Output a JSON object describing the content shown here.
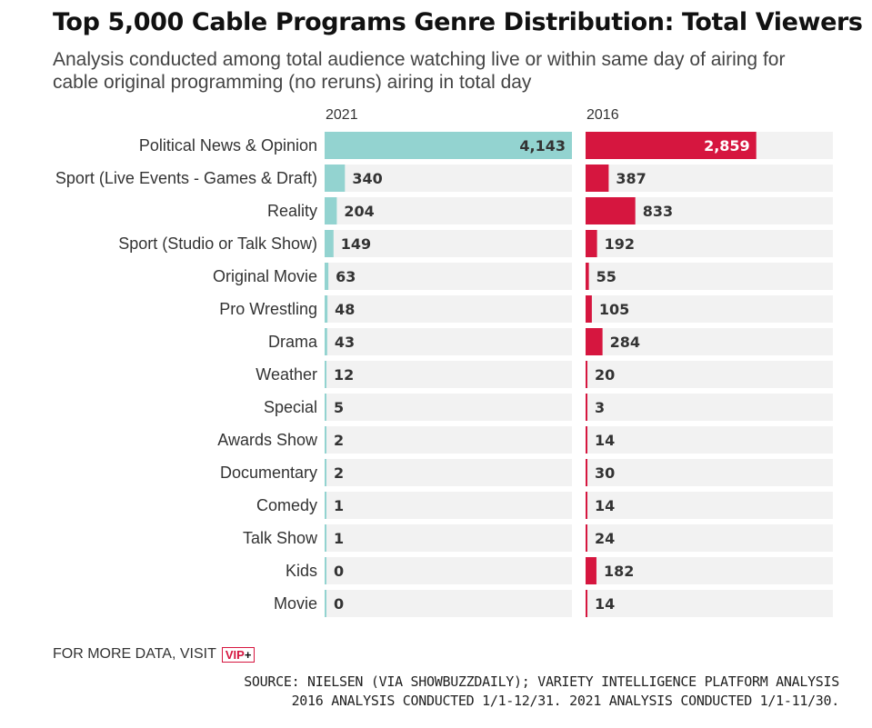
{
  "title": "Top 5,000 Cable Programs Genre Distribution: Total Viewers",
  "subtitle": "Analysis conducted among total audience watching live or within same day of airing for cable original programming (no reruns) airing in total day",
  "footer": {
    "more_data": "FOR MORE DATA, VISIT",
    "vip_label": "VIP",
    "vip_plus": "+",
    "source_line1": "SOURCE: NIELSEN (VIA SHOWBUZZDAILY); VARIETY INTELLIGENCE PLATFORM ANALYSIS",
    "source_line2": "2016 ANALYSIS CONDUCTED 1/1-12/31. 2021 ANALYSIS CONDUCTED 1/1-11/30."
  },
  "colors": {
    "series_2021": "#93d3d0",
    "series_2016": "#d6163f",
    "track": "#f2f2f2"
  },
  "chart_data": {
    "type": "bar",
    "orientation": "horizontal",
    "categories": [
      "Political News & Opinion",
      "Sport (Live Events - Games & Draft)",
      "Reality",
      "Sport (Studio or Talk Show)",
      "Original Movie",
      "Pro Wrestling",
      "Drama",
      "Weather",
      "Special",
      "Awards Show",
      "Documentary",
      "Comedy",
      "Talk Show",
      "Kids",
      "Movie"
    ],
    "series": [
      {
        "name": "2021",
        "values": [
          4143,
          340,
          204,
          149,
          63,
          48,
          43,
          12,
          5,
          2,
          2,
          1,
          1,
          0,
          0
        ]
      },
      {
        "name": "2016",
        "values": [
          2859,
          387,
          833,
          192,
          55,
          105,
          284,
          20,
          3,
          14,
          30,
          14,
          24,
          182,
          14
        ]
      }
    ],
    "value_labels": {
      "2021": [
        "4,143",
        "340",
        "204",
        "149",
        "63",
        "48",
        "43",
        "12",
        "5",
        "2",
        "2",
        "1",
        "1",
        "0",
        "0"
      ],
      "2016": [
        "2,859",
        "387",
        "833",
        "192",
        "55",
        "105",
        "284",
        "20",
        "3",
        "14",
        "30",
        "14",
        "24",
        "182",
        "14"
      ]
    },
    "xlim": [
      0,
      4143
    ],
    "grid": false,
    "legend": "panel headers"
  }
}
